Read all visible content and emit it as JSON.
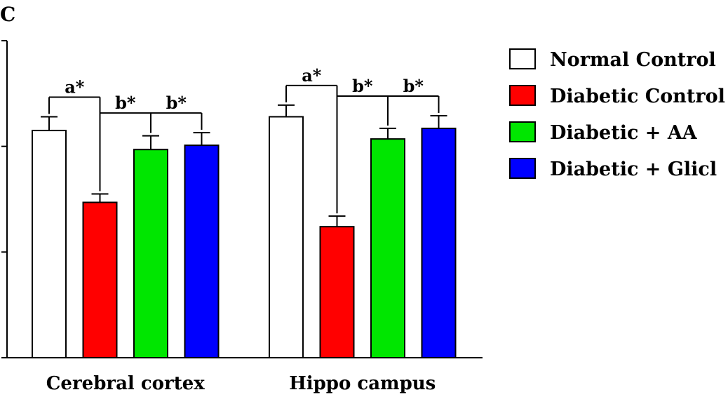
{
  "chart_data": {
    "type": "bar",
    "panel_label": "C",
    "categories": [
      "Cerebral cortex",
      "Hippo campus"
    ],
    "series": [
      {
        "name": "Normal Control",
        "color": "#ffffff",
        "values": [
          215,
          228
        ],
        "errors": [
          13,
          11
        ]
      },
      {
        "name": "Diabetic Control",
        "color": "#ff0000",
        "values": [
          147,
          124
        ],
        "errors": [
          8,
          10
        ]
      },
      {
        "name": "Diabetic + AA",
        "color": "#00e600",
        "values": [
          197,
          207
        ],
        "errors": [
          13,
          10
        ]
      },
      {
        "name": "Diabetic + Glicl",
        "color": "#0000ff",
        "values": [
          201,
          217
        ],
        "errors": [
          12,
          12
        ]
      }
    ],
    "ylim": [
      0,
      300
    ],
    "yticks": [
      0,
      100,
      200,
      300
    ],
    "legend_position": "right",
    "significance": [
      {
        "category": 0,
        "label": "a*",
        "from_series": 0,
        "to_series": [
          1
        ]
      },
      {
        "category": 0,
        "label": "b*",
        "from_series": 1,
        "to_series": [
          2,
          3
        ]
      },
      {
        "category": 1,
        "label": "a*",
        "from_series": 0,
        "to_series": [
          1
        ]
      },
      {
        "category": 1,
        "label": "b*",
        "from_series": 1,
        "to_series": [
          2,
          3
        ]
      }
    ]
  }
}
